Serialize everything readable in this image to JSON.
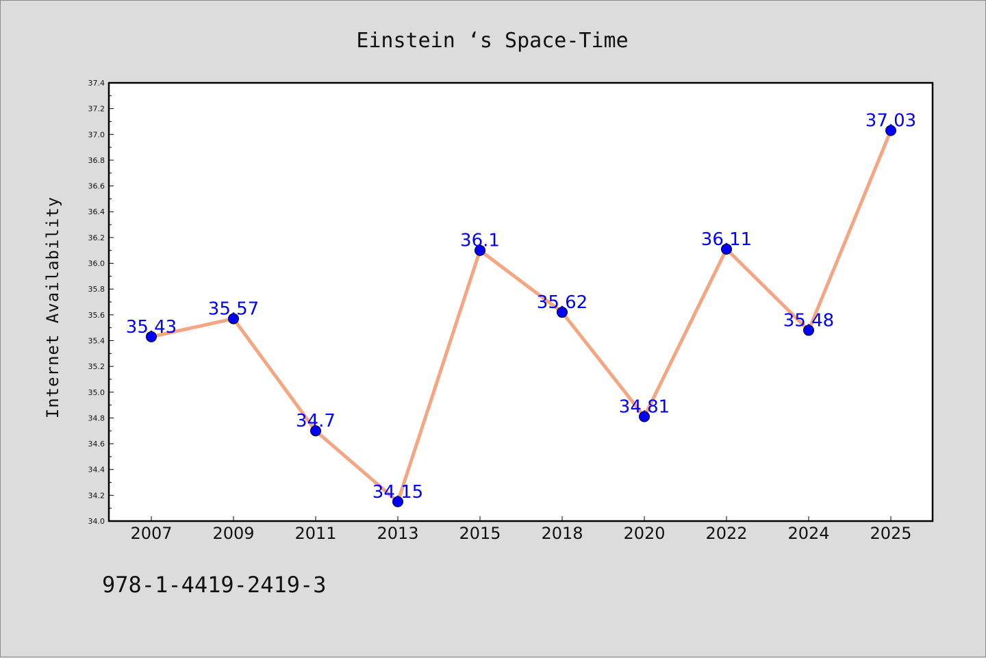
{
  "chart_data": {
    "type": "line",
    "title": "Einstein ‘s Space-Time",
    "ylabel": "Internet Availability",
    "xlabel": "",
    "categories": [
      "2007",
      "2009",
      "2011",
      "2013",
      "2015",
      "2018",
      "2020",
      "2022",
      "2024",
      "2025"
    ],
    "values": [
      35.43,
      35.57,
      34.7,
      34.15,
      36.1,
      35.62,
      34.81,
      36.11,
      35.48,
      37.03
    ],
    "data_labels": [
      "35.43",
      "35.57",
      "34.7",
      "34.15",
      "36.1",
      "35.62",
      "34.81",
      "36.11",
      "35.48",
      "37.03"
    ],
    "ylim": [
      34.0,
      37.4
    ],
    "yticks": [
      "34.0",
      "34.2",
      "34.4",
      "34.6",
      "34.8",
      "35.0",
      "35.2",
      "35.4",
      "35.6",
      "35.8",
      "36.0",
      "36.2",
      "36.4",
      "36.6",
      "36.8",
      "37.0",
      "37.2",
      "37.4"
    ],
    "grid": false,
    "line_color": "#f4a582",
    "marker_color": "#0000ff",
    "label_color": "#0000ff"
  },
  "footer": {
    "isbn": "978-1-4419-2419-3"
  }
}
